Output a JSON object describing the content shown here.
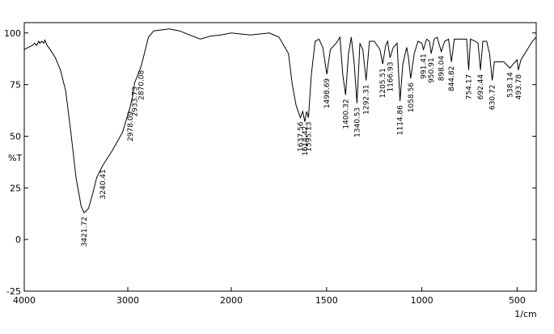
{
  "chart_data": {
    "type": "line",
    "y_label": "%T",
    "x_label": "1/cm",
    "xlim": [
      4000,
      400
    ],
    "x_scale_break": 2000,
    "ylim": [
      -25,
      105
    ],
    "xticks": [
      4000,
      3000,
      2000,
      1500,
      1000,
      500
    ],
    "yticks": [
      -25,
      0,
      25,
      50,
      75,
      100
    ],
    "grid": false,
    "color": "#000000",
    "x": [
      4000,
      3960,
      3920,
      3900,
      3880,
      3860,
      3850,
      3830,
      3810,
      3800,
      3780,
      3750,
      3700,
      3650,
      3600,
      3550,
      3500,
      3450,
      3421.72,
      3380,
      3340,
      3300,
      3240.41,
      3150,
      3050,
      2978.09,
      2950,
      2933.73,
      2900,
      2870.08,
      2850,
      2800,
      2750,
      2600,
      2500,
      2400,
      2300,
      2200,
      2100,
      2000,
      1900,
      1800,
      1750,
      1700,
      1680,
      1660,
      1637.56,
      1625,
      1614.42,
      1605,
      1595.13,
      1580,
      1560,
      1540,
      1520,
      1498.69,
      1480,
      1450,
      1430,
      1415,
      1400.32,
      1385,
      1370,
      1355,
      1340.53,
      1325,
      1310,
      1292.31,
      1275,
      1250,
      1220,
      1205.51,
      1190,
      1180,
      1166.93,
      1150,
      1130,
      1114.86,
      1100,
      1080,
      1070,
      1058.56,
      1040,
      1020,
      1000,
      991.41,
      975,
      960,
      950.91,
      935,
      920,
      898.04,
      880,
      860,
      844.82,
      830,
      780,
      765,
      754.17,
      745,
      720,
      705,
      692.44,
      680,
      660,
      645,
      630.72,
      620,
      600,
      570,
      538.14,
      520,
      500,
      493.78,
      480,
      460,
      440,
      420,
      400
    ],
    "values": [
      92,
      93,
      94,
      95,
      94,
      96,
      95,
      96,
      95,
      96.5,
      94,
      92,
      88,
      82,
      72,
      52,
      30,
      16,
      13,
      15,
      22,
      30,
      36,
      43,
      52,
      64,
      70,
      76,
      80,
      84,
      88,
      98,
      101,
      102,
      101,
      99,
      97,
      98.5,
      99,
      100,
      99,
      100,
      98,
      90,
      75,
      65,
      59,
      62,
      57,
      62,
      59,
      80,
      96,
      97,
      93,
      80,
      92,
      95,
      98,
      80,
      70,
      90,
      98,
      85,
      66,
      95,
      92,
      77,
      96,
      96,
      92,
      85,
      94,
      96,
      88,
      93,
      95,
      67,
      85,
      93,
      88,
      78,
      90,
      96,
      95,
      92,
      97,
      96,
      90,
      97,
      98,
      91,
      96,
      97,
      86,
      97,
      97,
      97,
      82,
      97,
      96,
      95,
      82,
      96,
      96,
      90,
      77,
      86,
      86,
      86,
      83,
      85,
      87,
      82,
      87,
      90,
      93,
      96,
      98
    ],
    "peaks": [
      3421.72,
      3240.41,
      2978.09,
      2933.73,
      2870.08,
      1637.56,
      1614.42,
      1595.13,
      1498.69,
      1400.32,
      1340.53,
      1292.31,
      1205.51,
      1166.93,
      1114.86,
      1058.56,
      991.41,
      950.91,
      898.04,
      844.82,
      754.17,
      692.44,
      630.72,
      538.14,
      493.78
    ]
  }
}
